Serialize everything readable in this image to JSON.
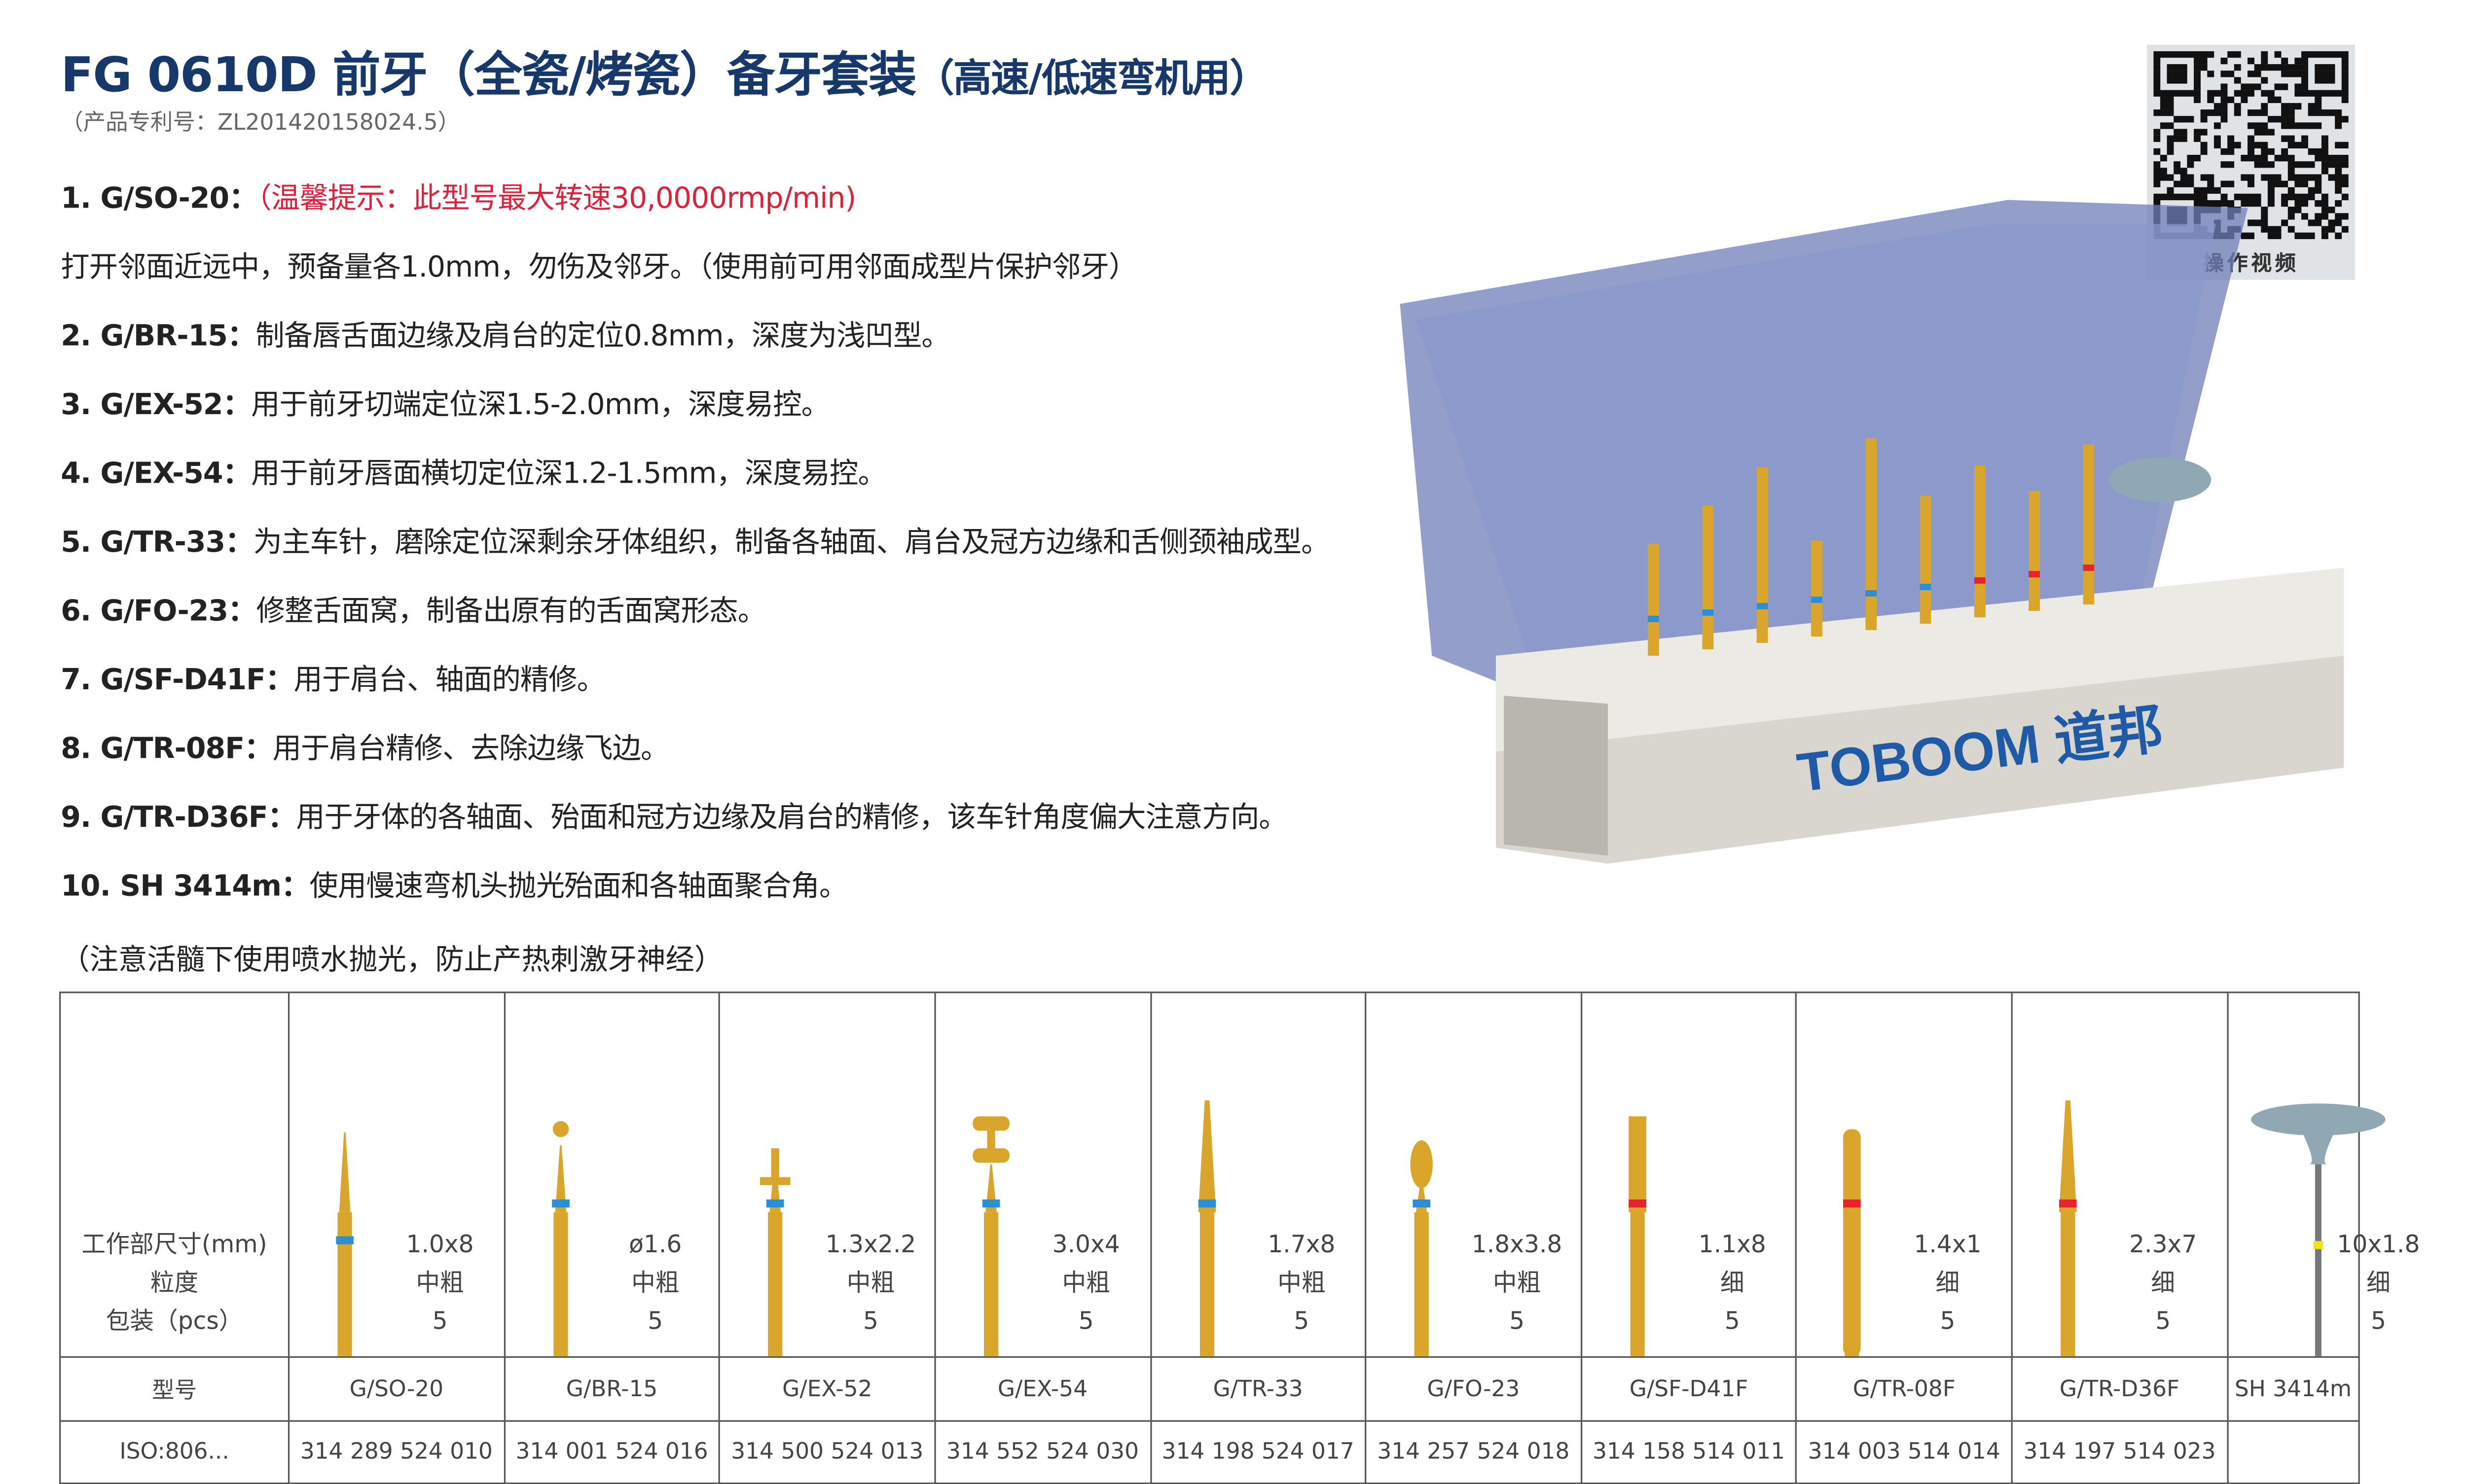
{
  "header": {
    "title": "FG 0610D 前牙（全瓷/烤瓷）备牙套装",
    "title_suffix": "（高速/低速弯机用）",
    "patent": "（产品专利号：ZL201420158024.5）"
  },
  "qr": {
    "label": "操作视频"
  },
  "case": {
    "logo": "TOBOOM 道邦"
  },
  "instructions": [
    {
      "code": "1. G/SO-20：",
      "text": "",
      "warning": "（温馨提示：此型号最大转速30,0000rmp/min)"
    },
    {
      "code": "",
      "text": "打开邻面近远中，预备量各1.0mm，勿伤及邻牙。（使用前可用邻面成型片保护邻牙）",
      "warning": ""
    },
    {
      "code": "2. G/BR-15：",
      "text": "制备唇舌面边缘及肩台的定位0.8mm，深度为浅凹型。",
      "warning": ""
    },
    {
      "code": "3. G/EX-52：",
      "text": "用于前牙切端定位深1.5-2.0mm，深度易控。",
      "warning": ""
    },
    {
      "code": "4. G/EX-54：",
      "text": "用于前牙唇面横切定位深1.2-1.5mm，深度易控。",
      "warning": ""
    },
    {
      "code": "5. G/TR-33：",
      "text": "为主车针，磨除定位深剩余牙体组织，制备各轴面、肩台及冠方边缘和舌侧颈袖成型。",
      "warning": ""
    },
    {
      "code": "6. G/FO-23：",
      "text": "修整舌面窝，制备出原有的舌面窝形态。",
      "warning": ""
    },
    {
      "code": "7. G/SF-D41F：",
      "text": "用于肩台、轴面的精修。",
      "warning": ""
    },
    {
      "code": "8. G/TR-08F：",
      "text": "用于肩台精修、去除边缘飞边。",
      "warning": ""
    },
    {
      "code": "9. G/TR-D36F：",
      "text": "用于牙体的各轴面、殆面和冠方边缘及肩台的精修，该车针角度偏大注意方向。",
      "warning": ""
    },
    {
      "code": "10. SH 3414m：",
      "text": "使用慢速弯机头抛光殆面和各轴面聚合角。",
      "warning": ""
    }
  ],
  "note": "（注意活髓下使用喷水抛光，防止产热刺激牙神经）",
  "table": {
    "row_labels": {
      "spec": "工作部尺寸(mm)",
      "grit": "粒度",
      "pack": "包装（pcs）",
      "model": "型号",
      "iso": "ISO:806..."
    },
    "colors": {
      "blue": "#2a8fd8",
      "red": "#e8222e",
      "yellow": "#f2e21a",
      "gold": "#d9a52a",
      "gray_blue": "#8fa8b3"
    },
    "items": [
      {
        "model": "G/SO-20",
        "size": "1.0x8",
        "grit": "中粗",
        "pack": "5",
        "iso": "314 289 524 010",
        "band": "blue",
        "shape": "needle"
      },
      {
        "model": "G/BR-15",
        "size": "ø1.6",
        "grit": "中粗",
        "pack": "5",
        "iso": "314 001 524 016",
        "band": "blue",
        "shape": "ball"
      },
      {
        "model": "G/EX-52",
        "size": "1.3x2.2",
        "grit": "中粗",
        "pack": "5",
        "iso": "314 500 524 013",
        "band": "blue",
        "shape": "disc"
      },
      {
        "model": "G/EX-54",
        "size": "3.0x4",
        "grit": "中粗",
        "pack": "5",
        "iso": "314 552 524 030",
        "band": "blue",
        "shape": "double"
      },
      {
        "model": "G/TR-33",
        "size": "1.7x8",
        "grit": "中粗",
        "pack": "5",
        "iso": "314 198 524 017",
        "band": "blue",
        "shape": "taper"
      },
      {
        "model": "G/FO-23",
        "size": "1.8x3.8",
        "grit": "中粗",
        "pack": "5",
        "iso": "314 257 524 018",
        "band": "blue",
        "shape": "flame"
      },
      {
        "model": "G/SF-D41F",
        "size": "1.1x8",
        "grit": "细",
        "pack": "5",
        "iso": "314 158 514 011",
        "band": "red",
        "shape": "cyl"
      },
      {
        "model": "G/TR-08F",
        "size": "1.4x1",
        "grit": "细",
        "pack": "5",
        "iso": "314 003 514 014",
        "band": "red",
        "shape": "long"
      },
      {
        "model": "G/TR-D36F",
        "size": "2.3x7",
        "grit": "细",
        "pack": "5",
        "iso": "314 197 514 023",
        "band": "red",
        "shape": "taper"
      },
      {
        "model": "SH 3414m",
        "size": "10x1.8",
        "grit": "细",
        "pack": "5",
        "iso": "",
        "band": "yellow",
        "shape": "cup"
      }
    ]
  }
}
